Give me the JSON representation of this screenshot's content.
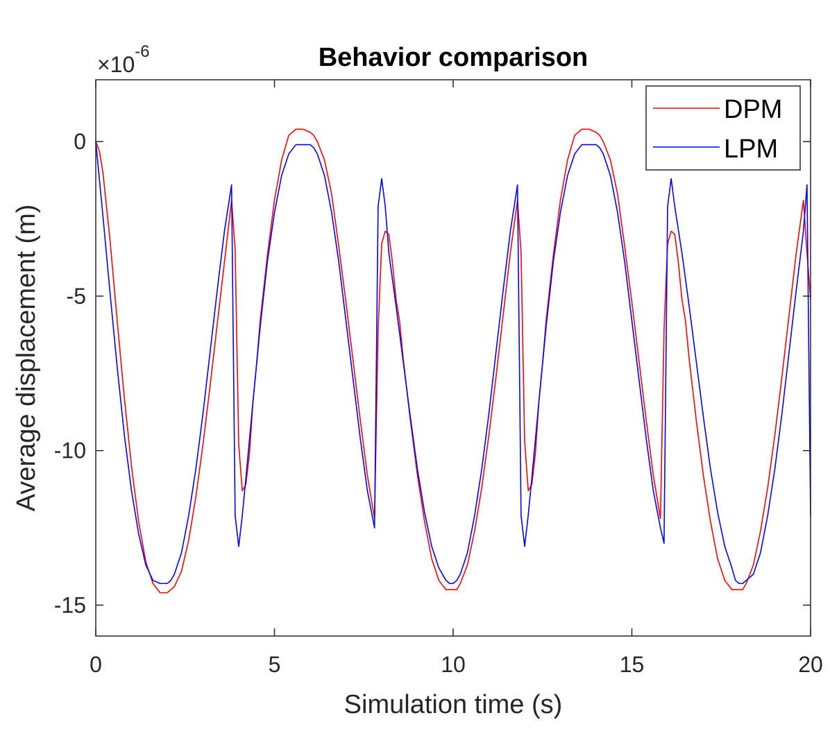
{
  "chart_data": {
    "type": "line",
    "title": "Behavior comparison",
    "xlabel": "Simulation time (s)",
    "ylabel": "Average displacement (m)",
    "y_exponent_base": "×10",
    "y_exponent_power": "-6",
    "xlim": [
      0,
      20
    ],
    "ylim": [
      -16,
      2
    ],
    "xticks": [
      0,
      5,
      10,
      15,
      20
    ],
    "xtick_labels": [
      "0",
      "5",
      "10",
      "15",
      "20"
    ],
    "yticks": [
      0,
      -5,
      -10,
      -15
    ],
    "ytick_labels": [
      "0",
      "-5",
      "-10",
      "-15"
    ],
    "legend_position": "top-right",
    "series": [
      {
        "name": "DPM",
        "color": "#ff0000",
        "x": [
          0,
          0.1,
          0.2,
          0.4,
          0.6,
          0.8,
          1.0,
          1.2,
          1.4,
          1.6,
          1.8,
          2.0,
          2.1,
          2.2,
          2.4,
          2.6,
          2.8,
          3.0,
          3.2,
          3.4,
          3.6,
          3.8,
          3.9,
          4.0,
          4.1,
          4.2,
          4.3,
          4.4,
          4.5,
          4.6,
          4.8,
          5.0,
          5.2,
          5.4,
          5.6,
          5.8,
          6.0,
          6.1,
          6.2,
          6.4,
          6.6,
          6.8,
          7.0,
          7.2,
          7.4,
          7.6,
          7.8,
          7.9,
          8.0,
          8.1,
          8.2,
          8.3,
          8.4,
          8.5,
          8.6,
          8.8,
          9.0,
          9.2,
          9.4,
          9.6,
          9.8,
          10.0,
          10.1,
          10.2,
          10.4,
          10.6,
          10.8,
          11.0,
          11.2,
          11.4,
          11.6,
          11.8,
          11.9,
          12.0,
          12.1,
          12.2,
          12.3,
          12.4,
          12.5,
          12.6,
          12.8,
          13.0,
          13.2,
          13.4,
          13.6,
          13.8,
          14.0,
          14.1,
          14.2,
          14.4,
          14.6,
          14.8,
          15.0,
          15.2,
          15.4,
          15.6,
          15.8,
          15.9,
          16.0,
          16.1,
          16.2,
          16.3,
          16.4,
          16.5,
          16.6,
          16.8,
          17.0,
          17.2,
          17.4,
          17.6,
          17.8,
          18.0,
          18.1,
          18.2,
          18.4,
          18.6,
          18.8,
          19.0,
          19.2,
          19.4,
          19.6,
          19.8,
          19.9,
          20.0
        ],
        "y": [
          0,
          -0.3,
          -1.0,
          -3.2,
          -5.8,
          -8.3,
          -10.5,
          -12.3,
          -13.6,
          -14.3,
          -14.6,
          -14.6,
          -14.5,
          -14.4,
          -13.9,
          -12.9,
          -11.5,
          -9.8,
          -7.9,
          -5.9,
          -3.9,
          -1.9,
          -3.5,
          -9.8,
          -11.3,
          -11.1,
          -10.1,
          -8.4,
          -7.2,
          -5.8,
          -3.7,
          -1.9,
          -0.6,
          0.2,
          0.4,
          0.4,
          0.3,
          0.2,
          -0.0,
          -0.6,
          -1.7,
          -3.4,
          -5.2,
          -7.1,
          -9.0,
          -10.8,
          -12.2,
          -6.1,
          -3.3,
          -2.9,
          -3.0,
          -3.9,
          -5.1,
          -5.8,
          -7.0,
          -9.0,
          -10.8,
          -12.3,
          -13.5,
          -14.2,
          -14.5,
          -14.5,
          -14.5,
          -14.3,
          -13.7,
          -12.6,
          -11.2,
          -9.5,
          -7.6,
          -5.6,
          -3.6,
          -1.9,
          -3.6,
          -9.7,
          -11.3,
          -11.1,
          -10.1,
          -8.4,
          -7.2,
          -5.8,
          -3.7,
          -1.9,
          -0.6,
          0.2,
          0.4,
          0.4,
          0.3,
          0.2,
          -0.0,
          -0.6,
          -1.7,
          -3.4,
          -5.2,
          -7.1,
          -9.0,
          -10.8,
          -12.2,
          -6.1,
          -3.3,
          -2.9,
          -3.0,
          -3.9,
          -5.1,
          -5.8,
          -7.0,
          -9.0,
          -10.8,
          -12.3,
          -13.5,
          -14.2,
          -14.5,
          -14.5,
          -14.5,
          -14.3,
          -13.7,
          -12.6,
          -11.2,
          -9.5,
          -7.6,
          -5.6,
          -3.6,
          -1.9,
          -3.6,
          -5.1
        ]
      },
      {
        "name": "LPM",
        "color": "#0000ff",
        "x": [
          0,
          0.1,
          0.2,
          0.4,
          0.6,
          0.8,
          1.0,
          1.2,
          1.4,
          1.6,
          1.8,
          1.9,
          2.0,
          2.1,
          2.2,
          2.4,
          2.6,
          2.8,
          3.0,
          3.2,
          3.4,
          3.6,
          3.8,
          3.9,
          4.0,
          4.1,
          4.2,
          4.4,
          4.6,
          4.8,
          5.0,
          5.2,
          5.4,
          5.6,
          5.8,
          5.9,
          6.0,
          6.1,
          6.2,
          6.4,
          6.6,
          6.8,
          7.0,
          7.2,
          7.4,
          7.6,
          7.8,
          7.9,
          8.0,
          8.1,
          8.2,
          8.4,
          8.6,
          8.8,
          9.0,
          9.2,
          9.4,
          9.6,
          9.8,
          9.9,
          10.0,
          10.1,
          10.2,
          10.4,
          10.6,
          10.8,
          11.0,
          11.2,
          11.4,
          11.6,
          11.8,
          11.9,
          12.0,
          12.1,
          12.2,
          12.4,
          12.6,
          12.8,
          13.0,
          13.2,
          13.4,
          13.6,
          13.8,
          13.9,
          14.0,
          14.1,
          14.2,
          14.4,
          14.6,
          14.8,
          15.0,
          15.2,
          15.4,
          15.6,
          15.8,
          15.9,
          16.0,
          16.1,
          16.2,
          16.4,
          16.6,
          16.8,
          17.0,
          17.2,
          17.4,
          17.6,
          17.8,
          17.9,
          18.0,
          18.1,
          18.2,
          18.4,
          18.6,
          18.8,
          19.0,
          19.2,
          19.4,
          19.6,
          19.8,
          19.9,
          20.0
        ],
        "y": [
          0,
          -1.2,
          -2.4,
          -4.9,
          -7.3,
          -9.5,
          -11.3,
          -12.7,
          -13.7,
          -14.2,
          -14.3,
          -14.3,
          -14.3,
          -14.2,
          -14.0,
          -13.3,
          -12.1,
          -10.6,
          -8.8,
          -6.8,
          -4.8,
          -2.9,
          -1.4,
          -12.1,
          -13.1,
          -12.1,
          -10.9,
          -8.4,
          -6.0,
          -3.9,
          -2.3,
          -1.1,
          -0.4,
          -0.1,
          -0.1,
          -0.1,
          -0.1,
          -0.2,
          -0.4,
          -1.1,
          -2.3,
          -3.9,
          -5.8,
          -7.7,
          -9.6,
          -11.3,
          -12.5,
          -2.1,
          -1.2,
          -2.1,
          -3.6,
          -5.3,
          -7.1,
          -8.9,
          -10.6,
          -12.0,
          -13.1,
          -13.8,
          -14.2,
          -14.3,
          -14.3,
          -14.2,
          -14.0,
          -13.3,
          -12.1,
          -10.6,
          -8.8,
          -6.8,
          -4.8,
          -2.9,
          -1.4,
          -12.1,
          -13.1,
          -12.1,
          -10.9,
          -8.4,
          -6.0,
          -3.9,
          -2.3,
          -1.1,
          -0.4,
          -0.1,
          -0.1,
          -0.1,
          -0.1,
          -0.2,
          -0.4,
          -1.1,
          -2.3,
          -3.9,
          -5.8,
          -7.7,
          -9.6,
          -11.3,
          -12.5,
          -13.0,
          -2.1,
          -1.2,
          -2.1,
          -3.6,
          -5.3,
          -7.1,
          -8.9,
          -10.6,
          -12.0,
          -13.1,
          -13.8,
          -14.2,
          -14.3,
          -14.3,
          -14.2,
          -14.0,
          -13.3,
          -12.1,
          -10.6,
          -8.8,
          -6.8,
          -4.8,
          -2.9,
          -1.4,
          -12.1
        ]
      }
    ]
  }
}
